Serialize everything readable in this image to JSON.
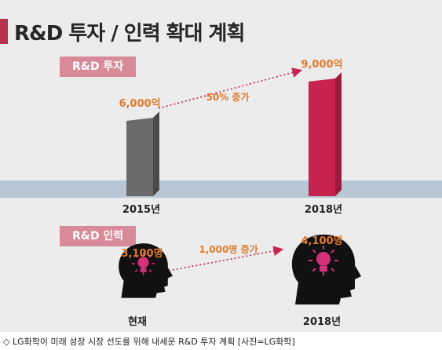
{
  "title": "R&D 투자 / 인력 확대 계획",
  "caption": "◇ LG화학이 미래 성장 시장 선도를 위해 내세운 R&D 투자 계획 [사진=LG화학]",
  "colors": {
    "accent": "#b8324e",
    "tag": "#d98a98",
    "band": "#b7c7d6",
    "bar_2015": "#6b6b6b",
    "bar_2018": "#c7234f",
    "growth_text": "#e07b2c",
    "value_text": "#e07b2c",
    "arrow": "#c7234f"
  },
  "chart_data": [
    {
      "type": "bar",
      "title": "R&D 투자",
      "categories": [
        "2015년",
        "2018년"
      ],
      "values": [
        6000,
        9000
      ],
      "value_labels": [
        "6,000억",
        "9,000억"
      ],
      "unit": "억",
      "annotation": "50% 증가",
      "ylim": [
        0,
        9000
      ]
    },
    {
      "type": "icon-compare",
      "title": "R&D 인력",
      "categories": [
        "현재",
        "2018년"
      ],
      "values": [
        3100,
        4100
      ],
      "value_labels": [
        "3,100명",
        "4,100명"
      ],
      "unit": "명",
      "annotation": "1,000명 증가",
      "icon": "head-lightbulb-icon"
    }
  ]
}
